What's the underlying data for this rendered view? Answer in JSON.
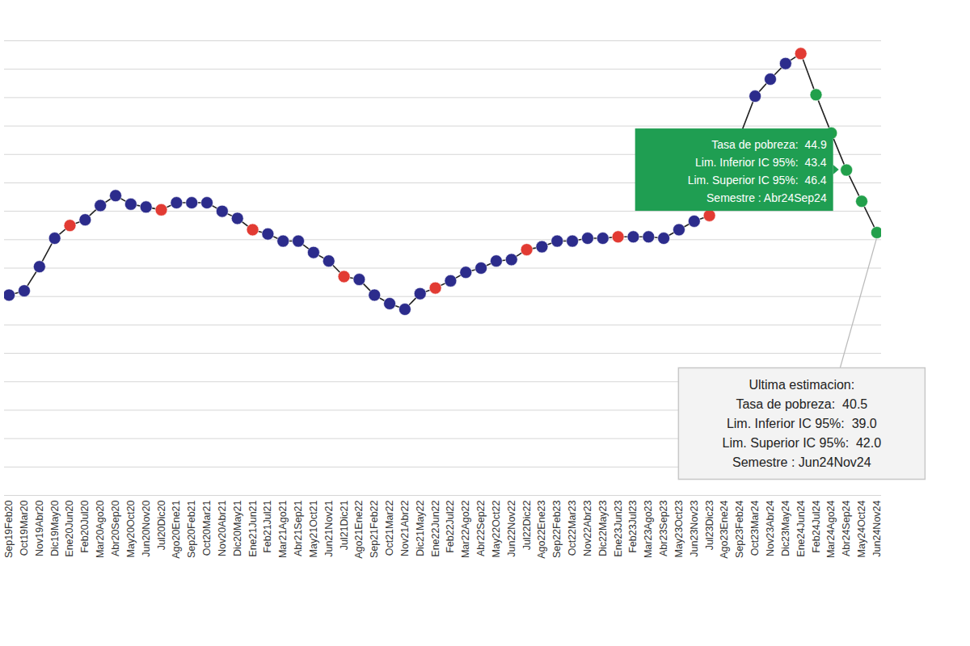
{
  "chart_data": {
    "type": "line",
    "x": [
      "Sep19Feb20",
      "Oct19Mar20",
      "Nov19Abr20",
      "Dic19May20",
      "Ene20Jun20",
      "Feb20Jul20",
      "Mar20Ago20",
      "Abr20Sep20",
      "May20Oct20",
      "Jun20Nov20",
      "Jul20Dic20",
      "Ago20Ene21",
      "Sep20Feb21",
      "Oct20Mar21",
      "Nov20Abr21",
      "Dic20May21",
      "Ene21Jun21",
      "Feb21Jul21",
      "Mar21Ago21",
      "Abr21Sep21",
      "May21Oct21",
      "Jun21Nov21",
      "Jul21Dic21",
      "Ago21Ene22",
      "Sep21Feb22",
      "Oct21Mar22",
      "Nov21Abr22",
      "Dic21May22",
      "Ene22Jun22",
      "Feb22Jul22",
      "Mar22Ago22",
      "Abr22Sep22",
      "May22Oct22",
      "Jun22Nov22",
      "Jul22Dic22",
      "Ago22Ene23",
      "Sep22Feb23",
      "Oct22Mar23",
      "Nov22Abr23",
      "Dic22May23",
      "Ene23Jun23",
      "Feb23Jul23",
      "Mar23Ago23",
      "Abr23Sep23",
      "May23Oct23",
      "Jun23Nov23",
      "Jul23Dic23",
      "Ago23Ene24",
      "Sep23Feb24",
      "Oct23Mar24",
      "Nov23Abr24",
      "Dic23May24",
      "Ene24Jun24",
      "Feb24Jul24",
      "Mar24Ago24",
      "Abr24Sep24",
      "May24Oct24",
      "Jun24Nov24"
    ],
    "values": [
      36.1,
      36.4,
      38.1,
      40.1,
      41.0,
      41.4,
      42.4,
      43.1,
      42.5,
      42.3,
      42.1,
      42.6,
      42.6,
      42.6,
      42.0,
      41.5,
      40.7,
      40.4,
      39.9,
      39.9,
      39.1,
      38.5,
      37.4,
      37.2,
      36.1,
      35.5,
      35.1,
      36.2,
      36.6,
      37.1,
      37.7,
      38.0,
      38.5,
      38.6,
      39.3,
      39.5,
      39.9,
      39.9,
      40.1,
      40.1,
      40.2,
      40.2,
      40.2,
      40.1,
      40.7,
      41.3,
      41.7,
      null,
      null,
      50.1,
      51.3,
      52.4,
      53.1,
      50.2,
      47.5,
      44.9,
      42.7,
      40.5
    ],
    "colors": [
      "#2c2c8c",
      "#2c2c8c",
      "#2c2c8c",
      "#2c2c8c",
      "#e23b33",
      "#2c2c8c",
      "#2c2c8c",
      "#2c2c8c",
      "#2c2c8c",
      "#2c2c8c",
      "#e23b33",
      "#2c2c8c",
      "#2c2c8c",
      "#2c2c8c",
      "#2c2c8c",
      "#2c2c8c",
      "#e23b33",
      "#2c2c8c",
      "#2c2c8c",
      "#2c2c8c",
      "#2c2c8c",
      "#2c2c8c",
      "#e23b33",
      "#2c2c8c",
      "#2c2c8c",
      "#2c2c8c",
      "#2c2c8c",
      "#2c2c8c",
      "#e23b33",
      "#2c2c8c",
      "#2c2c8c",
      "#2c2c8c",
      "#2c2c8c",
      "#2c2c8c",
      "#e23b33",
      "#2c2c8c",
      "#2c2c8c",
      "#2c2c8c",
      "#2c2c8c",
      "#2c2c8c",
      "#e23b33",
      "#2c2c8c",
      "#2c2c8c",
      "#2c2c8c",
      "#2c2c8c",
      "#2c2c8c",
      "#e23b33",
      null,
      null,
      "#2c2c8c",
      "#2c2c8c",
      "#2c2c8c",
      "#e23b33",
      "#22a04b",
      "#22a04b",
      "#22a04b",
      "#22a04b",
      "#22a04b"
    ],
    "color": "#222222",
    "marker": "circle",
    "ylim": [
      22,
      54
    ],
    "yticks": [
      22,
      24,
      26,
      28,
      30,
      32,
      34,
      36,
      38,
      40,
      42,
      44,
      46,
      48,
      50,
      52,
      54
    ],
    "grid": true,
    "tick_labels": "x",
    "annotations": [
      {
        "x": "Abr24Sep24",
        "color": "#1f9e52",
        "lines": [
          "Tasa de pobreza:  44.9",
          "Lim. Inferior IC 95%:  43.4",
          "Lim. Superior IC 95%:  46.4",
          "Semestre : Abr24Sep24"
        ]
      },
      {
        "x": "Jun24Nov24",
        "color": "#f3f3f3",
        "lines": [
          "Ultima estimacion:",
          "Tasa de pobreza:  40.5",
          "Lim. Inferior IC 95%:  39.0",
          "Lim. Superior IC 95%:  42.0",
          "Semestre : Jun24Nov24"
        ]
      }
    ]
  }
}
